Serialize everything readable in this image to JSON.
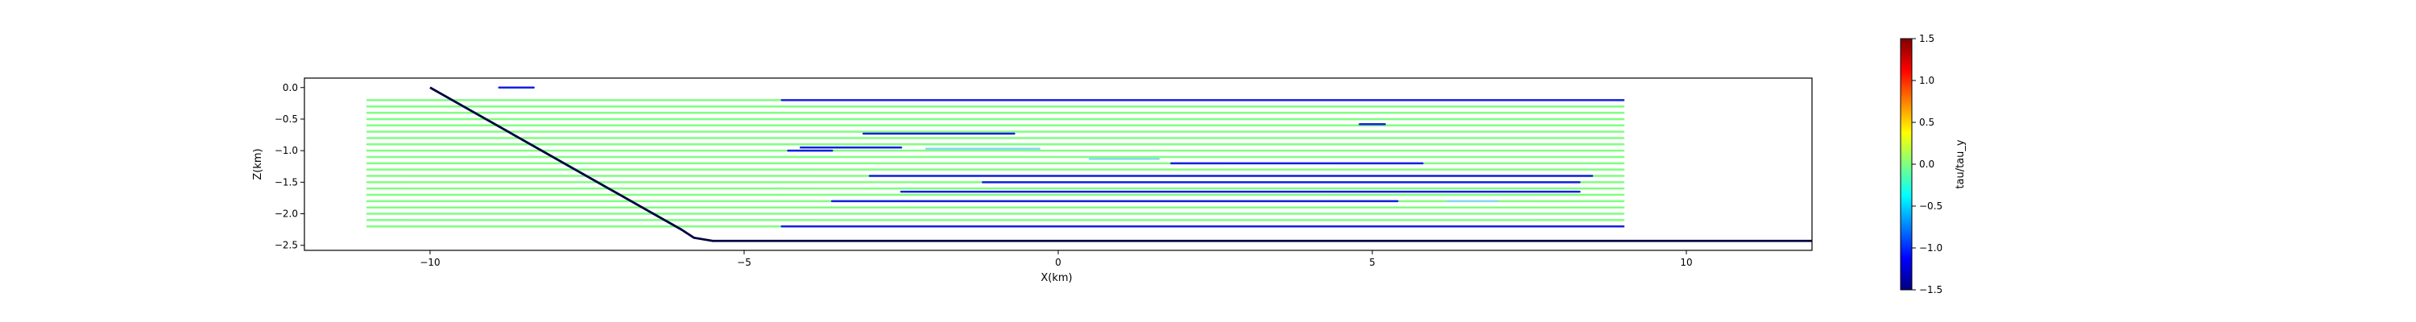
{
  "chart_data": {
    "type": "line",
    "xlabel": "X(km)",
    "ylabel": "Z(km)",
    "xlim": [
      -12.0,
      12.0
    ],
    "ylim": [
      -2.58,
      0.15
    ],
    "xticks": [
      -10,
      -5,
      0,
      5,
      10
    ],
    "xtick_labels": [
      "−10",
      "−5",
      "0",
      "5",
      "10"
    ],
    "yticks": [
      0.0,
      -0.5,
      -1.0,
      -1.5,
      -2.0,
      -2.5
    ],
    "ytick_labels": [
      "0.0",
      "−0.5",
      "−1.0",
      "−1.5",
      "−2.0",
      "−2.5"
    ],
    "colorbar": {
      "label": "tau/tau_y",
      "range": [
        -1.5,
        1.5
      ],
      "ticks": [
        1.5,
        1.0,
        0.5,
        0.0,
        -0.5,
        -1.0,
        -1.5
      ],
      "tick_labels": [
        "1.5",
        "1.0",
        "0.5",
        "0.0",
        "−0.5",
        "−1.0",
        "−1.5"
      ],
      "colormap": "jet"
    },
    "colors": {
      "green": "#7fff7f",
      "blue": "#1520e0",
      "red": "#e8501e",
      "cyan": "#88d8f0",
      "orange": "#f08a2a",
      "boundary": "#000040"
    },
    "boundary": {
      "x": [
        -10.0,
        -6.0,
        -5.8,
        -5.5,
        12.0
      ],
      "y": [
        0.0,
        -2.25,
        -2.38,
        -2.43,
        -2.43
      ]
    },
    "series": [
      {
        "x": [
          -11,
          -4.4,
          9.0
        ],
        "y": [
          -0.2,
          -0.2,
          -0.2
        ],
        "colors": [
          "green",
          "blue"
        ]
      },
      {
        "x": [
          -11,
          -4.4,
          9.0
        ],
        "y": [
          -0.3,
          -0.3,
          -0.3
        ],
        "colors": [
          "green",
          "green"
        ]
      },
      {
        "x": [
          -11,
          -4.4,
          9.0
        ],
        "y": [
          -0.4,
          -0.4,
          -0.4
        ],
        "colors": [
          "green",
          "green"
        ]
      },
      {
        "x": [
          -11,
          -4.4,
          9.0
        ],
        "y": [
          -0.5,
          -0.5,
          -0.5
        ],
        "colors": [
          "green",
          "green"
        ]
      },
      {
        "x": [
          -11,
          -4.4,
          9.0
        ],
        "y": [
          -0.6,
          -0.6,
          -0.6
        ],
        "colors": [
          "green",
          "green"
        ]
      },
      {
        "x": [
          -11,
          -4.4,
          9.0
        ],
        "y": [
          -0.7,
          -0.7,
          -0.7
        ],
        "colors": [
          "green",
          "green"
        ]
      },
      {
        "x": [
          -11,
          -4.4,
          9.0
        ],
        "y": [
          -0.8,
          -0.8,
          -0.8
        ],
        "colors": [
          "green",
          "green"
        ]
      },
      {
        "x": [
          -11,
          -4.4,
          9.0
        ],
        "y": [
          -0.9,
          -0.9,
          -0.9
        ],
        "colors": [
          "green",
          "green"
        ]
      },
      {
        "x": [
          -11,
          -4.4,
          9.0
        ],
        "y": [
          -1.0,
          -1.0,
          -1.0
        ],
        "colors": [
          "green",
          "green"
        ]
      },
      {
        "x": [
          -11,
          -4.4,
          9.0
        ],
        "y": [
          -1.1,
          -1.1,
          -1.1
        ],
        "colors": [
          "green",
          "green"
        ]
      },
      {
        "x": [
          -11,
          -4.4,
          9.0
        ],
        "y": [
          -1.2,
          -1.2,
          -1.2
        ],
        "colors": [
          "green",
          "green"
        ]
      },
      {
        "x": [
          -11,
          -4.4,
          9.0
        ],
        "y": [
          -1.3,
          -1.3,
          -1.3
        ],
        "colors": [
          "green",
          "green"
        ]
      },
      {
        "x": [
          -11,
          -4.4,
          9.0
        ],
        "y": [
          -1.4,
          -1.4,
          -1.4
        ],
        "colors": [
          "green",
          "green"
        ]
      },
      {
        "x": [
          -11,
          -4.4,
          9.0
        ],
        "y": [
          -1.5,
          -1.5,
          -1.5
        ],
        "colors": [
          "green",
          "green"
        ]
      },
      {
        "x": [
          -11,
          -4.4,
          9.0
        ],
        "y": [
          -1.6,
          -1.6,
          -1.6
        ],
        "colors": [
          "green",
          "green"
        ]
      },
      {
        "x": [
          -11,
          -4.4,
          9.0
        ],
        "y": [
          -1.7,
          -1.7,
          -1.7
        ],
        "colors": [
          "green",
          "green"
        ]
      },
      {
        "x": [
          -11,
          -4.4,
          9.0
        ],
        "y": [
          -1.8,
          -1.8,
          -1.8
        ],
        "colors": [
          "green",
          "green"
        ]
      },
      {
        "x": [
          -11,
          -4.4,
          9.0
        ],
        "y": [
          -1.9,
          -1.9,
          -1.9
        ],
        "colors": [
          "green",
          "green"
        ]
      },
      {
        "x": [
          -11,
          -4.4,
          9.0
        ],
        "y": [
          -2.0,
          -2.0,
          -2.0
        ],
        "colors": [
          "green",
          "green"
        ]
      },
      {
        "x": [
          -11,
          -4.4,
          9.0
        ],
        "y": [
          -2.1,
          -2.1,
          -2.1
        ],
        "colors": [
          "green",
          "green"
        ]
      },
      {
        "x": [
          -11,
          -4.4,
          9.0
        ],
        "y": [
          -2.2,
          -2.2,
          -2.2
        ],
        "colors": [
          "green",
          "blue"
        ]
      }
    ],
    "segments": [
      {
        "x": [
          -8.9,
          -8.35
        ],
        "y": [
          0.0,
          0.0
        ],
        "color": "blue"
      },
      {
        "x": [
          -3.1,
          -0.7
        ],
        "y": [
          -0.73,
          -0.73
        ],
        "color": "blue"
      },
      {
        "x": [
          -4.3,
          -3.6
        ],
        "y": [
          -1.0,
          -1.0
        ],
        "color": "blue"
      },
      {
        "x": [
          1.8,
          5.8
        ],
        "y": [
          -1.2,
          -1.2
        ],
        "color": "blue"
      },
      {
        "x": [
          -3.0,
          8.5
        ],
        "y": [
          -1.4,
          -1.4
        ],
        "color": "blue"
      },
      {
        "x": [
          -1.2,
          8.3
        ],
        "y": [
          -1.5,
          -1.5
        ],
        "color": "blue"
      },
      {
        "x": [
          -2.5,
          8.3
        ],
        "y": [
          -1.65,
          -1.65
        ],
        "color": "blue"
      },
      {
        "x": [
          -3.6,
          5.4
        ],
        "y": [
          -1.8,
          -1.8
        ],
        "color": "blue"
      },
      {
        "x": [
          -4.1,
          -2.5
        ],
        "y": [
          -0.95,
          -0.95
        ],
        "color": "blue"
      },
      {
        "x": [
          4.8,
          5.2
        ],
        "y": [
          -0.58,
          -0.58
        ],
        "color": "blue"
      },
      {
        "x": [
          -2.1,
          -0.3
        ],
        "y": [
          -0.97,
          -0.97
        ],
        "color": "cyan"
      },
      {
        "x": [
          0.5,
          1.6
        ],
        "y": [
          -1.13,
          -1.13
        ],
        "color": "cyan"
      },
      {
        "x": [
          6.2,
          7.0
        ],
        "y": [
          -1.8,
          -1.8
        ],
        "color": "cyan"
      }
    ]
  }
}
